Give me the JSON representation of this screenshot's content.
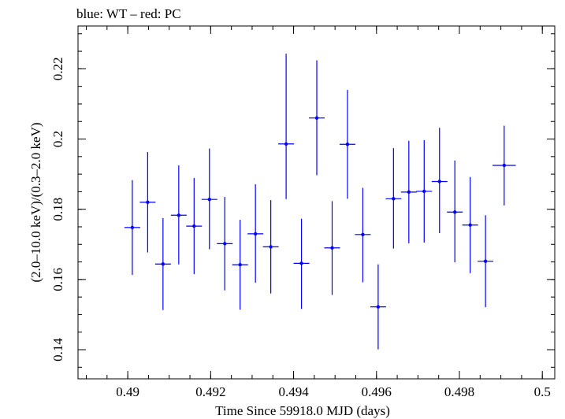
{
  "chart_data": {
    "type": "scatter",
    "title": "blue: WT – red: PC",
    "xlabel": "Time Since 59918.0 MJD (days)",
    "ylabel": "(2.0–10.0 keV)/(0.3–2.0 keV)",
    "xlim": [
      0.4888,
      0.5003
    ],
    "ylim": [
      0.1317,
      0.2322
    ],
    "x_ticks": [
      0.49,
      0.492,
      0.494,
      0.496,
      0.498,
      0.5
    ],
    "x_tick_labels": [
      "0.49",
      "0.492",
      "0.494",
      "0.496",
      "0.498",
      "0.5"
    ],
    "y_ticks": [
      0.14,
      0.16,
      0.18,
      0.2,
      0.22
    ],
    "y_tick_labels": [
      "0.14",
      "0.16",
      "0.18",
      "0.2",
      "0.22"
    ],
    "series": [
      {
        "name": "WT",
        "color": "#0000ff",
        "points": [
          {
            "x": 0.49011,
            "y": 0.1748,
            "xerr": 0.00019,
            "yerr_lo": 0.0135,
            "yerr_hi": 0.0135
          },
          {
            "x": 0.49048,
            "y": 0.182,
            "xerr": 0.00019,
            "yerr_lo": 0.0143,
            "yerr_hi": 0.0143
          },
          {
            "x": 0.49085,
            "y": 0.1644,
            "xerr": 0.00019,
            "yerr_lo": 0.0131,
            "yerr_hi": 0.0131
          },
          {
            "x": 0.49123,
            "y": 0.1783,
            "xerr": 0.00019,
            "yerr_lo": 0.014,
            "yerr_hi": 0.0142
          },
          {
            "x": 0.4916,
            "y": 0.1752,
            "xerr": 0.00019,
            "yerr_lo": 0.0137,
            "yerr_hi": 0.0137
          },
          {
            "x": 0.49197,
            "y": 0.1828,
            "xerr": 0.00019,
            "yerr_lo": 0.0142,
            "yerr_hi": 0.0145
          },
          {
            "x": 0.49234,
            "y": 0.1702,
            "xerr": 0.00019,
            "yerr_lo": 0.0133,
            "yerr_hi": 0.0133
          },
          {
            "x": 0.49271,
            "y": 0.1642,
            "xerr": 0.00019,
            "yerr_lo": 0.0128,
            "yerr_hi": 0.0128
          },
          {
            "x": 0.49308,
            "y": 0.173,
            "xerr": 0.00019,
            "yerr_lo": 0.0139,
            "yerr_hi": 0.0141
          },
          {
            "x": 0.49345,
            "y": 0.1693,
            "xerr": 0.00019,
            "yerr_lo": 0.0133,
            "yerr_hi": 0.0133
          },
          {
            "x": 0.49382,
            "y": 0.1986,
            "xerr": 0.00019,
            "yerr_lo": 0.0157,
            "yerr_hi": 0.0257
          },
          {
            "x": 0.49419,
            "y": 0.1646,
            "xerr": 0.00019,
            "yerr_lo": 0.013,
            "yerr_hi": 0.0127
          },
          {
            "x": 0.49456,
            "y": 0.206,
            "xerr": 0.00019,
            "yerr_lo": 0.0163,
            "yerr_hi": 0.0164
          },
          {
            "x": 0.49493,
            "y": 0.169,
            "xerr": 0.00019,
            "yerr_lo": 0.0134,
            "yerr_hi": 0.0133
          },
          {
            "x": 0.4953,
            "y": 0.1985,
            "xerr": 0.00019,
            "yerr_lo": 0.0155,
            "yerr_hi": 0.0155
          },
          {
            "x": 0.49567,
            "y": 0.1728,
            "xerr": 0.00019,
            "yerr_lo": 0.0136,
            "yerr_hi": 0.0133
          },
          {
            "x": 0.49604,
            "y": 0.1522,
            "xerr": 0.00019,
            "yerr_lo": 0.0121,
            "yerr_hi": 0.0121
          },
          {
            "x": 0.49641,
            "y": 0.183,
            "xerr": 0.00019,
            "yerr_lo": 0.0142,
            "yerr_hi": 0.0144
          },
          {
            "x": 0.49678,
            "y": 0.1849,
            "xerr": 0.00019,
            "yerr_lo": 0.0146,
            "yerr_hi": 0.0146
          },
          {
            "x": 0.49715,
            "y": 0.1851,
            "xerr": 0.00019,
            "yerr_lo": 0.0146,
            "yerr_hi": 0.0146
          },
          {
            "x": 0.49752,
            "y": 0.1879,
            "xerr": 0.00019,
            "yerr_lo": 0.0147,
            "yerr_hi": 0.0153
          },
          {
            "x": 0.49789,
            "y": 0.1792,
            "xerr": 0.00019,
            "yerr_lo": 0.0143,
            "yerr_hi": 0.0147
          },
          {
            "x": 0.49826,
            "y": 0.1755,
            "xerr": 0.00019,
            "yerr_lo": 0.0137,
            "yerr_hi": 0.0137
          },
          {
            "x": 0.49863,
            "y": 0.1652,
            "xerr": 0.00019,
            "yerr_lo": 0.0131,
            "yerr_hi": 0.0131
          },
          {
            "x": 0.49908,
            "y": 0.1925,
            "xerr": 0.00028,
            "yerr_lo": 0.0114,
            "yerr_hi": 0.0113
          }
        ]
      }
    ]
  }
}
